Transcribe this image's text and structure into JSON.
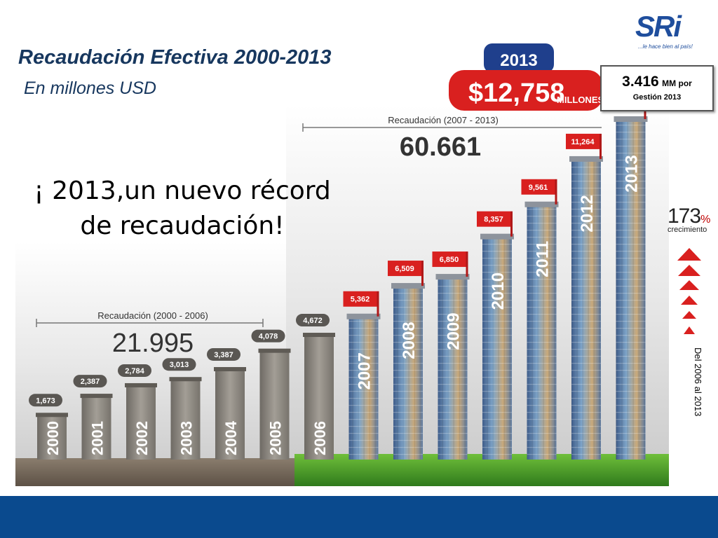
{
  "slide": {
    "title": "Recaudación Efectiva 2000-2013",
    "subtitle": "En millones USD",
    "headline_line1": "¡ 2013,un nuevo récord",
    "headline_line2": "de recaudación!"
  },
  "logo": {
    "text": "SRi",
    "slogan": "...le hace bien al país!"
  },
  "callout": {
    "value": "3.416",
    "unit": "MM por",
    "label": "Gestión 2013"
  },
  "highlight": {
    "year": "2013",
    "amount": "$12,758",
    "unit": "MILLONES"
  },
  "growth": {
    "percent": "173",
    "percent_sign": "%",
    "label": "crecimiento",
    "period": "Del 2006 al 2013"
  },
  "colors": {
    "title": "#17375e",
    "accent_red": "#d9201f",
    "banner_blue": "#1f3f8c",
    "footer": "#0a4a8e",
    "grass": "#4a9a2a",
    "concrete": "#8f8a82",
    "glass_building": "#5a6a8a"
  },
  "chart_data": {
    "type": "bar",
    "title": "Recaudación Efectiva 2000-2013",
    "ylabel": "",
    "xlabel": "",
    "categories": [
      "2000",
      "2001",
      "2002",
      "2003",
      "2004",
      "2005",
      "2006",
      "2007",
      "2008",
      "2009",
      "2010",
      "2011",
      "2012",
      "2013"
    ],
    "value_labels": [
      "1,673",
      "2,387",
      "2,784",
      "3,013",
      "3,387",
      "4,078",
      "4,672",
      "5,362",
      "6,509",
      "6,850",
      "8,357",
      "9,561",
      "11,264",
      "12,758"
    ],
    "values": [
      1673,
      2387,
      2784,
      3013,
      3387,
      4078,
      4672,
      5362,
      6509,
      6850,
      8357,
      9561,
      11264,
      12758
    ],
    "ylim": [
      0,
      13000
    ],
    "annotations": [
      {
        "label": "Recaudación (2000 - 2006)",
        "value": "21.995"
      },
      {
        "label": "Recaudación (2007 - 2013)",
        "value": "60.661"
      }
    ]
  }
}
